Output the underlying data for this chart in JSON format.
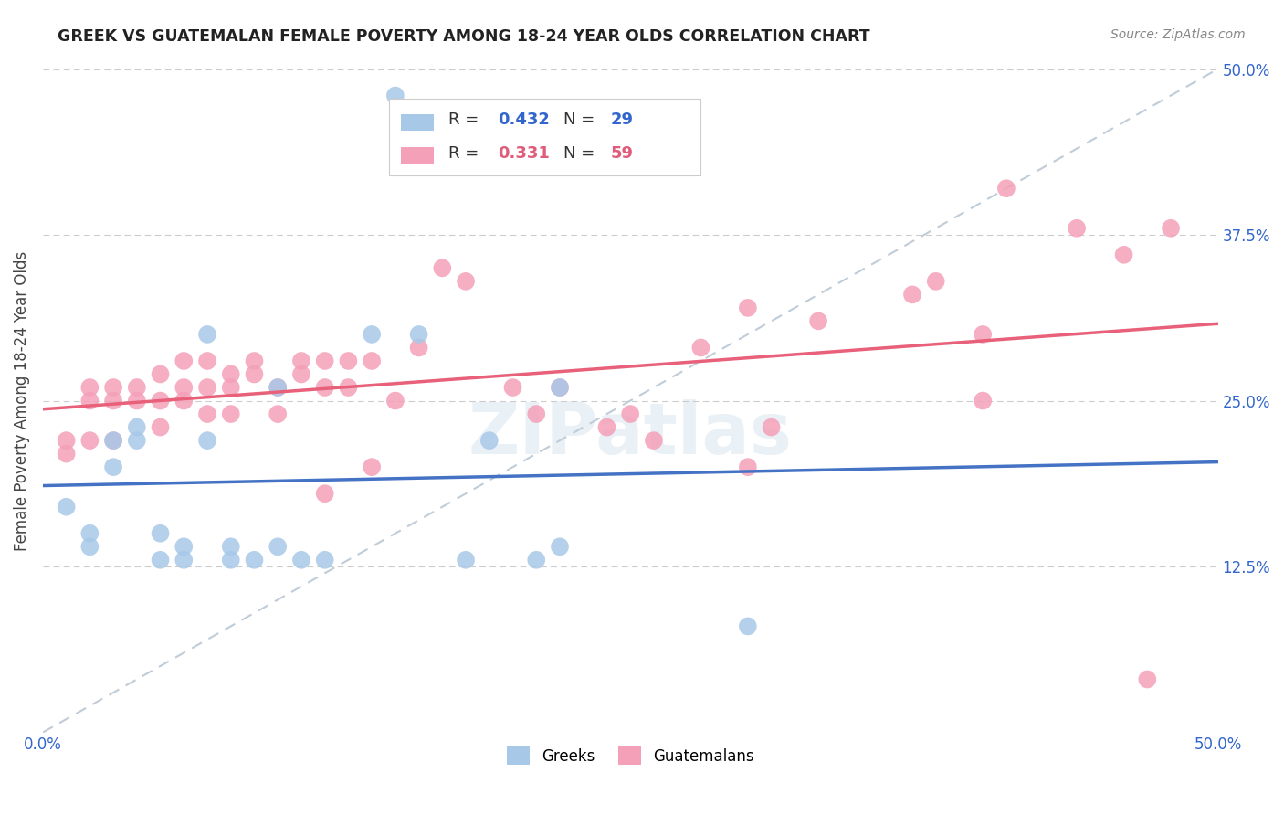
{
  "title": "GREEK VS GUATEMALAN FEMALE POVERTY AMONG 18-24 YEAR OLDS CORRELATION CHART",
  "source": "Source: ZipAtlas.com",
  "ylabel": "Female Poverty Among 18-24 Year Olds",
  "xlim": [
    0.0,
    0.5
  ],
  "ylim": [
    0.0,
    0.5
  ],
  "ytick_vals": [
    0.125,
    0.25,
    0.375,
    0.5
  ],
  "ytick_labels": [
    "12.5%",
    "25.0%",
    "37.5%",
    "50.0%"
  ],
  "xtick_vals": [
    0.0,
    0.5
  ],
  "xtick_labels": [
    "0.0%",
    "50.0%"
  ],
  "greek_R": 0.432,
  "greek_N": 29,
  "guatemalan_R": 0.331,
  "guatemalan_N": 59,
  "greek_color": "#a8c8e8",
  "guatemalan_color": "#f4a0b8",
  "greek_line_color": "#4472c4",
  "guatemalan_line_color": "#e8607a",
  "diagonal_color": "#c0ccd8",
  "background_color": "#ffffff",
  "watermark": "ZIPatlas",
  "legend_label_greek": "Greeks",
  "legend_label_guatemalan": "Guatemalans",
  "greek_x": [
    0.01,
    0.02,
    0.02,
    0.03,
    0.03,
    0.04,
    0.04,
    0.05,
    0.05,
    0.06,
    0.06,
    0.07,
    0.07,
    0.08,
    0.08,
    0.09,
    0.1,
    0.1,
    0.11,
    0.12,
    0.14,
    0.15,
    0.16,
    0.18,
    0.19,
    0.21,
    0.22,
    0.22,
    0.3
  ],
  "greek_y": [
    0.17,
    0.15,
    0.14,
    0.22,
    0.2,
    0.23,
    0.22,
    0.15,
    0.13,
    0.14,
    0.13,
    0.3,
    0.22,
    0.14,
    0.13,
    0.13,
    0.26,
    0.14,
    0.13,
    0.13,
    0.3,
    0.48,
    0.3,
    0.13,
    0.22,
    0.13,
    0.26,
    0.14,
    0.08
  ],
  "guatemalan_x": [
    0.01,
    0.01,
    0.02,
    0.02,
    0.02,
    0.03,
    0.03,
    0.03,
    0.04,
    0.04,
    0.05,
    0.05,
    0.05,
    0.06,
    0.06,
    0.06,
    0.07,
    0.07,
    0.07,
    0.08,
    0.08,
    0.08,
    0.09,
    0.09,
    0.1,
    0.1,
    0.11,
    0.11,
    0.12,
    0.12,
    0.12,
    0.13,
    0.13,
    0.14,
    0.14,
    0.15,
    0.16,
    0.17,
    0.18,
    0.2,
    0.21,
    0.22,
    0.24,
    0.25,
    0.26,
    0.28,
    0.3,
    0.3,
    0.31,
    0.33,
    0.37,
    0.38,
    0.4,
    0.4,
    0.41,
    0.44,
    0.46,
    0.47,
    0.48
  ],
  "guatemalan_y": [
    0.22,
    0.21,
    0.26,
    0.25,
    0.22,
    0.26,
    0.25,
    0.22,
    0.26,
    0.25,
    0.27,
    0.25,
    0.23,
    0.28,
    0.26,
    0.25,
    0.28,
    0.26,
    0.24,
    0.27,
    0.26,
    0.24,
    0.28,
    0.27,
    0.26,
    0.24,
    0.28,
    0.27,
    0.28,
    0.26,
    0.18,
    0.28,
    0.26,
    0.28,
    0.2,
    0.25,
    0.29,
    0.35,
    0.34,
    0.26,
    0.24,
    0.26,
    0.23,
    0.24,
    0.22,
    0.29,
    0.32,
    0.2,
    0.23,
    0.31,
    0.33,
    0.34,
    0.3,
    0.25,
    0.41,
    0.38,
    0.36,
    0.04,
    0.38
  ]
}
